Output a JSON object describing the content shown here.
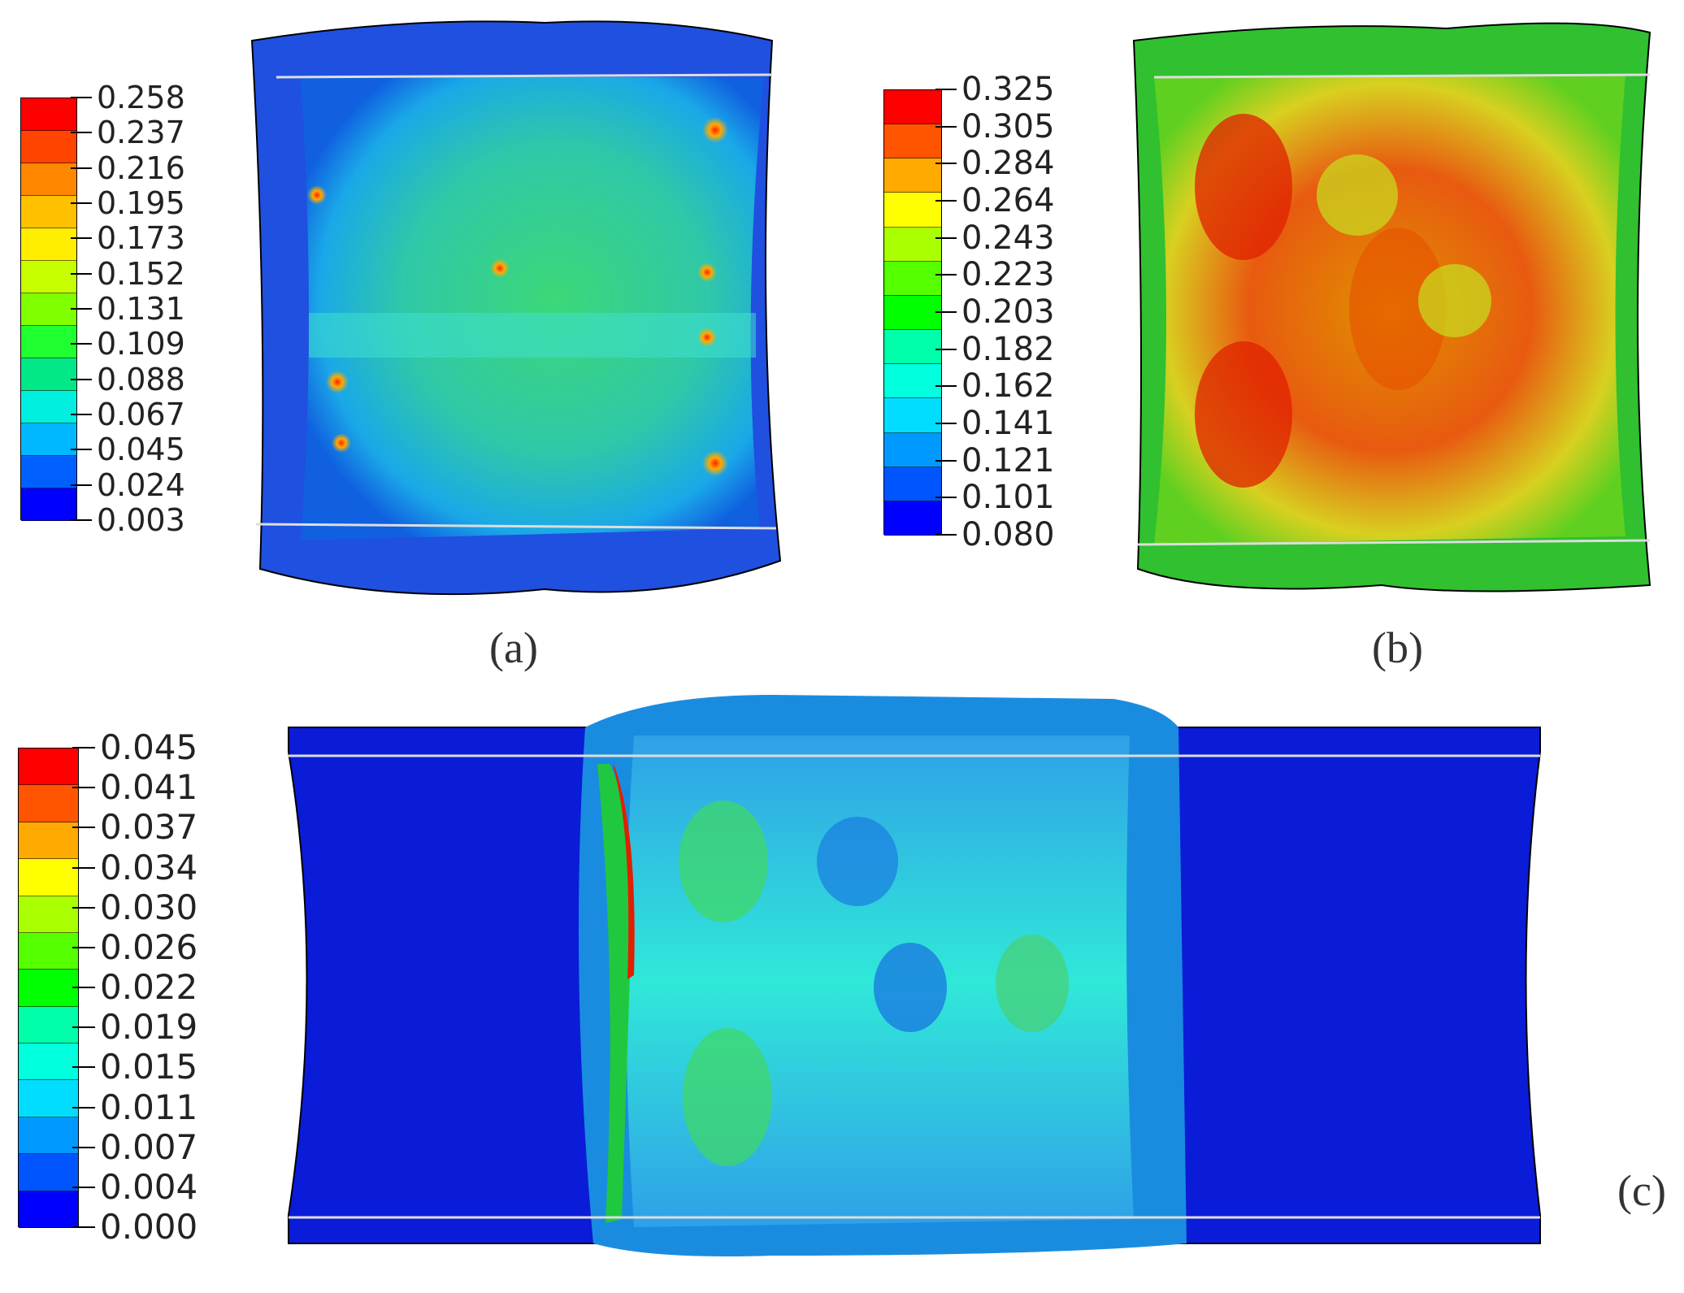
{
  "panels": {
    "a": {
      "caption": "(a)",
      "legend": [
        "0.258",
        "0.237",
        "0.216",
        "0.195",
        "0.173",
        "0.152",
        "0.131",
        "0.109",
        "0.088",
        "0.067",
        "0.045",
        "0.024",
        "0.003"
      ],
      "colors": [
        "#ff0000",
        "#ff4400",
        "#ff8800",
        "#ffc000",
        "#ffee00",
        "#c8ff00",
        "#80ff00",
        "#20ff30",
        "#00e888",
        "#00f0e0",
        "#00b8ff",
        "#0060ff",
        "#0000ff"
      ]
    },
    "b": {
      "caption": "(b)",
      "legend": [
        "0.325",
        "0.305",
        "0.284",
        "0.264",
        "0.243",
        "0.223",
        "0.203",
        "0.182",
        "0.162",
        "0.141",
        "0.121",
        "0.101",
        "0.080"
      ],
      "colors": [
        "#ff0000",
        "#ff5500",
        "#ffaa00",
        "#ffff00",
        "#aaff00",
        "#55ff00",
        "#00ff00",
        "#00ffaa",
        "#00ffdd",
        "#00ddff",
        "#0099ff",
        "#0055ff",
        "#0000ff"
      ]
    },
    "c": {
      "caption": "(c)",
      "legend": [
        "0.045",
        "0.041",
        "0.037",
        "0.034",
        "0.030",
        "0.026",
        "0.022",
        "0.019",
        "0.015",
        "0.011",
        "0.007",
        "0.004",
        "0.000"
      ],
      "colors": [
        "#ff0000",
        "#ff5500",
        "#ffaa00",
        "#ffff00",
        "#aaff00",
        "#55ff00",
        "#00ff00",
        "#00ffaa",
        "#00ffdd",
        "#00ddff",
        "#0099ff",
        "#0055ff",
        "#0000ff"
      ]
    }
  }
}
